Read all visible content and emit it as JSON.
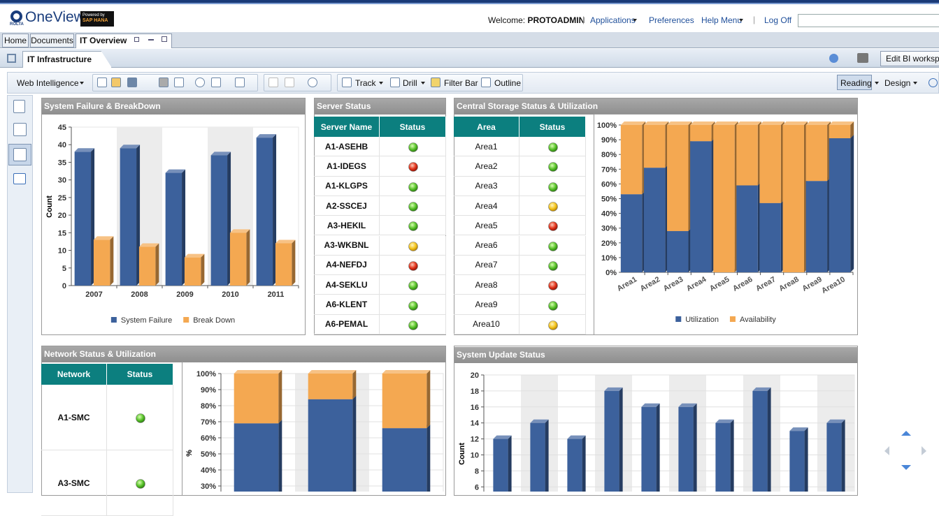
{
  "header": {
    "vendor": "ROLTA",
    "brand": "OneView",
    "trademark": "™",
    "powered_by": "Powered by",
    "platform": "SAP HANA",
    "welcome": "Welcome:",
    "user": "PROTOADMIN",
    "menu": [
      "Applications",
      "Preferences",
      "Help Menu",
      "Log Off"
    ]
  },
  "tabs": [
    "Home",
    "Documents",
    "IT Overview"
  ],
  "workspace": {
    "tab": "IT Infrastructure",
    "edit": "Edit BI workspac"
  },
  "toolbar": {
    "app": "Web Intelligence",
    "tools": [
      "Track",
      "Drill",
      "Filter Bar",
      "Outline"
    ],
    "modes": [
      "Reading",
      "Design"
    ]
  },
  "failure_panel": {
    "title": "System Failure & BreakDown",
    "chart": {
      "type": "bar",
      "ylabel": "Count",
      "categories": [
        "2007",
        "2008",
        "2009",
        "2010",
        "2011"
      ],
      "ylim": [
        0,
        45
      ],
      "yticks": [
        0,
        5,
        10,
        15,
        20,
        25,
        30,
        35,
        40,
        45
      ],
      "bands": true,
      "grid": false,
      "legend": "bottom",
      "series": [
        {
          "name": "System Failure",
          "color": "#3c619c",
          "values": [
            38,
            39,
            32,
            37,
            42
          ]
        },
        {
          "name": "Break Down",
          "color": "#f4a851",
          "values": [
            13,
            11,
            8,
            15,
            12
          ]
        }
      ]
    }
  },
  "server_panel": {
    "title": "Server Status",
    "columns": [
      "Server Name",
      "Status"
    ],
    "rows": [
      {
        "name": "A1-ASEHB",
        "status": "green"
      },
      {
        "name": "A1-IDEGS",
        "status": "red"
      },
      {
        "name": "A1-KLGPS",
        "status": "green"
      },
      {
        "name": "A2-SSCEJ",
        "status": "green"
      },
      {
        "name": "A3-HEKIL",
        "status": "green"
      },
      {
        "name": "A3-WKBNL",
        "status": "yellow"
      },
      {
        "name": "A4-NEFDJ",
        "status": "red"
      },
      {
        "name": "A4-SEKLU",
        "status": "green"
      },
      {
        "name": "A6-KLENT",
        "status": "green"
      },
      {
        "name": "A6-PEMAL",
        "status": "green"
      }
    ]
  },
  "storage_panel": {
    "title": "Central Storage Status & Utilization",
    "columns": [
      "Area",
      "Status"
    ],
    "rows": [
      {
        "name": "Area1",
        "status": "green"
      },
      {
        "name": "Area2",
        "status": "green"
      },
      {
        "name": "Area3",
        "status": "green"
      },
      {
        "name": "Area4",
        "status": "yellow"
      },
      {
        "name": "Area5",
        "status": "red"
      },
      {
        "name": "Area6",
        "status": "green"
      },
      {
        "name": "Area7",
        "status": "green"
      },
      {
        "name": "Area8",
        "status": "red"
      },
      {
        "name": "Area9",
        "status": "green"
      },
      {
        "name": "Area10",
        "status": "yellow"
      }
    ],
    "chart": {
      "type": "stacked_bar",
      "categories": [
        "Area1",
        "Area2",
        "Area3",
        "Area4",
        "Area5",
        "Area6",
        "Area7",
        "Area8",
        "Area9",
        "Area10"
      ],
      "ylim": [
        0,
        100
      ],
      "yticks": [
        {
          "value": 0,
          "label": "0%"
        },
        {
          "value": 10,
          "label": "10%"
        },
        {
          "value": 20,
          "label": "20%"
        },
        {
          "value": 30,
          "label": "30%"
        },
        {
          "value": 40,
          "label": "40%"
        },
        {
          "value": 50,
          "label": "50%"
        },
        {
          "value": 60,
          "label": "60%"
        },
        {
          "value": 70,
          "label": "70%"
        },
        {
          "value": 80,
          "label": "80%"
        },
        {
          "value": 90,
          "label": "90%"
        },
        {
          "value": 100,
          "label": "100%"
        }
      ],
      "bands": false,
      "grid": true,
      "legend": "bottom",
      "series": [
        {
          "name": "Utilization",
          "color": "#3c619c",
          "values": [
            53,
            71,
            28,
            89,
            0,
            59,
            47,
            0,
            62,
            91
          ]
        },
        {
          "name": "Availability",
          "color": "#f4a851",
          "values": [
            47,
            29,
            72,
            11,
            100,
            41,
            53,
            100,
            38,
            9
          ]
        }
      ]
    }
  },
  "network_panel": {
    "title": "Network Status & Utilization",
    "columns": [
      "Network",
      "Status"
    ],
    "rows": [
      {
        "name": "A1-SMC",
        "status": "green"
      },
      {
        "name": "A3-SMC",
        "status": "green"
      }
    ],
    "chart": {
      "type": "stacked_bar",
      "ylabel": "%",
      "ylim": [
        0,
        100
      ],
      "yticks": [
        {
          "value": 30,
          "label": "30%"
        },
        {
          "value": 40,
          "label": "40%"
        },
        {
          "value": 50,
          "label": "50%"
        },
        {
          "value": 60,
          "label": "60%"
        },
        {
          "value": 70,
          "label": "70%"
        },
        {
          "value": 80,
          "label": "80%"
        },
        {
          "value": 90,
          "label": "90%"
        },
        {
          "value": 100,
          "label": "100%"
        }
      ],
      "bands": true,
      "grid": true,
      "series": [
        {
          "color": "#3c619c",
          "values": [
            69,
            84,
            66
          ]
        },
        {
          "color": "#f4a851",
          "values": [
            31,
            16,
            34
          ]
        }
      ]
    }
  },
  "update_panel": {
    "title": "System Update Status",
    "chart": {
      "type": "bar",
      "ylabel": "Count",
      "ylim": [
        0,
        20
      ],
      "yticks": [
        6,
        8,
        10,
        12,
        14,
        16,
        18,
        20
      ],
      "bands": true,
      "grid": true,
      "series": [
        {
          "color": "#3c619c",
          "values": [
            12,
            14,
            12,
            18,
            16,
            16,
            14,
            18,
            13,
            14
          ]
        }
      ]
    }
  }
}
